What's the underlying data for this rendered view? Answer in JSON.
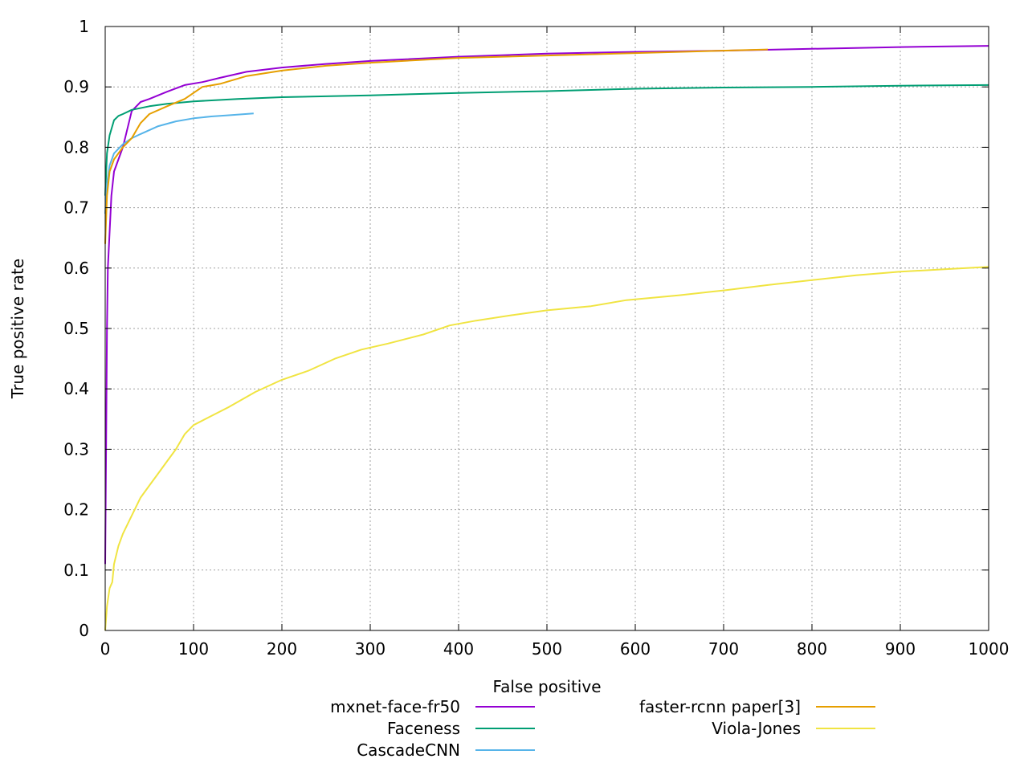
{
  "chart_data": {
    "type": "line",
    "title": "",
    "xlabel": "False positive",
    "ylabel": "True positive rate",
    "xlim": [
      0,
      1000
    ],
    "ylim": [
      0,
      1
    ],
    "xticks": [
      0,
      100,
      200,
      300,
      400,
      500,
      600,
      700,
      800,
      900,
      1000
    ],
    "yticks": [
      0,
      0.1,
      0.2,
      0.3,
      0.4,
      0.5,
      0.6,
      0.7,
      0.8,
      0.9,
      1
    ],
    "xtick_labels": [
      "0",
      "100",
      "200",
      "300",
      "400",
      "500",
      "600",
      "700",
      "800",
      "900",
      "1000"
    ],
    "ytick_labels": [
      "0",
      "0.1",
      "0.2",
      "0.3",
      "0.4",
      "0.5",
      "0.6",
      "0.7",
      "0.8",
      "0.9",
      "1"
    ],
    "grid": true,
    "legend_position": "bottom",
    "series": [
      {
        "name": "mxnet-face-fr50",
        "color": "#9400d3",
        "points": [
          [
            0,
            0.11
          ],
          [
            1,
            0.3
          ],
          [
            2,
            0.5
          ],
          [
            3,
            0.6
          ],
          [
            5,
            0.66
          ],
          [
            7,
            0.72
          ],
          [
            10,
            0.76
          ],
          [
            15,
            0.78
          ],
          [
            20,
            0.8
          ],
          [
            25,
            0.83
          ],
          [
            30,
            0.86
          ],
          [
            40,
            0.875
          ],
          [
            50,
            0.88
          ],
          [
            70,
            0.892
          ],
          [
            90,
            0.903
          ],
          [
            110,
            0.908
          ],
          [
            130,
            0.915
          ],
          [
            160,
            0.925
          ],
          [
            200,
            0.932
          ],
          [
            250,
            0.938
          ],
          [
            300,
            0.943
          ],
          [
            400,
            0.95
          ],
          [
            500,
            0.955
          ],
          [
            600,
            0.958
          ],
          [
            700,
            0.96
          ],
          [
            800,
            0.963
          ],
          [
            900,
            0.966
          ],
          [
            1000,
            0.968
          ]
        ]
      },
      {
        "name": "Faceness",
        "color": "#009e73",
        "points": [
          [
            0,
            0.72
          ],
          [
            2,
            0.79
          ],
          [
            5,
            0.82
          ],
          [
            10,
            0.845
          ],
          [
            15,
            0.852
          ],
          [
            20,
            0.855
          ],
          [
            30,
            0.862
          ],
          [
            50,
            0.868
          ],
          [
            70,
            0.872
          ],
          [
            100,
            0.876
          ],
          [
            150,
            0.88
          ],
          [
            200,
            0.883
          ],
          [
            300,
            0.886
          ],
          [
            400,
            0.89
          ],
          [
            500,
            0.893
          ],
          [
            600,
            0.897
          ],
          [
            700,
            0.899
          ],
          [
            800,
            0.9
          ],
          [
            900,
            0.902
          ],
          [
            1000,
            0.903
          ]
        ]
      },
      {
        "name": "CascadeCNN",
        "color": "#56b4e9",
        "points": [
          [
            0,
            0.69
          ],
          [
            2,
            0.74
          ],
          [
            5,
            0.77
          ],
          [
            10,
            0.79
          ],
          [
            20,
            0.805
          ],
          [
            30,
            0.815
          ],
          [
            40,
            0.822
          ],
          [
            60,
            0.835
          ],
          [
            80,
            0.843
          ],
          [
            100,
            0.848
          ],
          [
            120,
            0.851
          ],
          [
            140,
            0.853
          ],
          [
            168,
            0.856
          ]
        ]
      },
      {
        "name": "faster-rcnn paper[3]",
        "color": "#e69f00",
        "points": [
          [
            0,
            0.64
          ],
          [
            2,
            0.72
          ],
          [
            5,
            0.76
          ],
          [
            10,
            0.78
          ],
          [
            20,
            0.8
          ],
          [
            30,
            0.815
          ],
          [
            40,
            0.84
          ],
          [
            50,
            0.855
          ],
          [
            70,
            0.868
          ],
          [
            90,
            0.88
          ],
          [
            110,
            0.9
          ],
          [
            130,
            0.905
          ],
          [
            160,
            0.918
          ],
          [
            200,
            0.927
          ],
          [
            250,
            0.935
          ],
          [
            300,
            0.94
          ],
          [
            400,
            0.948
          ],
          [
            500,
            0.952
          ],
          [
            600,
            0.956
          ],
          [
            750,
            0.962
          ]
        ]
      },
      {
        "name": "Viola-Jones",
        "color": "#f0e442",
        "points": [
          [
            0,
            0
          ],
          [
            2,
            0.04
          ],
          [
            5,
            0.07
          ],
          [
            8,
            0.08
          ],
          [
            10,
            0.11
          ],
          [
            15,
            0.14
          ],
          [
            20,
            0.16
          ],
          [
            30,
            0.19
          ],
          [
            40,
            0.22
          ],
          [
            50,
            0.24
          ],
          [
            60,
            0.26
          ],
          [
            70,
            0.28
          ],
          [
            80,
            0.3
          ],
          [
            90,
            0.325
          ],
          [
            100,
            0.34
          ],
          [
            120,
            0.355
          ],
          [
            140,
            0.37
          ],
          [
            170,
            0.395
          ],
          [
            200,
            0.415
          ],
          [
            230,
            0.43
          ],
          [
            260,
            0.45
          ],
          [
            290,
            0.465
          ],
          [
            320,
            0.475
          ],
          [
            360,
            0.49
          ],
          [
            390,
            0.505
          ],
          [
            420,
            0.513
          ],
          [
            460,
            0.522
          ],
          [
            500,
            0.53
          ],
          [
            550,
            0.537
          ],
          [
            590,
            0.547
          ],
          [
            650,
            0.555
          ],
          [
            700,
            0.563
          ],
          [
            750,
            0.572
          ],
          [
            800,
            0.58
          ],
          [
            850,
            0.588
          ],
          [
            900,
            0.594
          ],
          [
            950,
            0.598
          ],
          [
            1000,
            0.602
          ]
        ]
      }
    ]
  }
}
